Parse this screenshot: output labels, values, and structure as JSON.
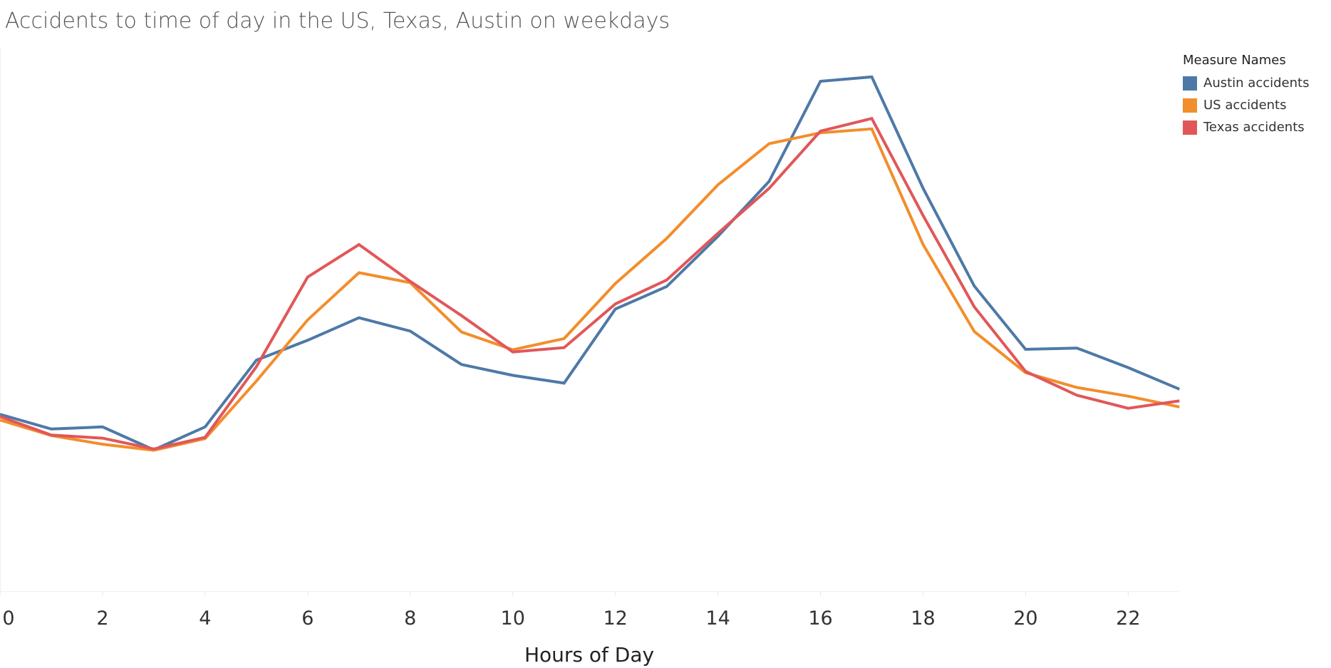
{
  "chart_data": {
    "type": "line",
    "title": "Accidents to time of day in the US, Texas, Austin on weekdays",
    "xlabel": "Hours of Day",
    "ylabel": "",
    "x": [
      0,
      1,
      2,
      3,
      4,
      5,
      6,
      7,
      8,
      9,
      10,
      11,
      12,
      13,
      14,
      15,
      16,
      17,
      18,
      19,
      20,
      21,
      22,
      23
    ],
    "xlim": [
      0,
      23
    ],
    "xticks": [
      0,
      2,
      4,
      6,
      8,
      10,
      12,
      14,
      16,
      18,
      20,
      22
    ],
    "ylim": [
      0,
      100
    ],
    "grid": false,
    "legend_title": "Measure Names",
    "legend_position": "top-right",
    "series": [
      {
        "name": "Austin accidents",
        "color": "#4e79a7",
        "values": [
          23.1,
          19.7,
          20.2,
          14.9,
          20.2,
          35.6,
          40.2,
          45.4,
          42.3,
          34.6,
          32.1,
          30.3,
          47.4,
          52.6,
          64.2,
          76.9,
          100.0,
          101.0,
          75.3,
          52.7,
          38.1,
          38.4,
          33.9,
          28.9
        ]
      },
      {
        "name": "US accidents",
        "color": "#f28e2b",
        "values": [
          21.8,
          18.2,
          16.2,
          14.8,
          17.5,
          30.8,
          44.9,
          55.8,
          53.5,
          42.1,
          38.0,
          40.6,
          53.3,
          63.7,
          76.1,
          85.6,
          88.1,
          89.0,
          62.3,
          42.2,
          32.7,
          29.3,
          27.3,
          24.8
        ]
      },
      {
        "name": "Texas accidents",
        "color": "#e15759",
        "values": [
          22.6,
          18.3,
          17.6,
          15.1,
          17.8,
          34.1,
          54.8,
          62.3,
          53.8,
          45.9,
          37.5,
          38.5,
          48.6,
          54.1,
          64.9,
          75.3,
          88.5,
          91.4,
          69.0,
          47.9,
          33.0,
          27.5,
          24.5,
          26.2
        ]
      }
    ]
  }
}
